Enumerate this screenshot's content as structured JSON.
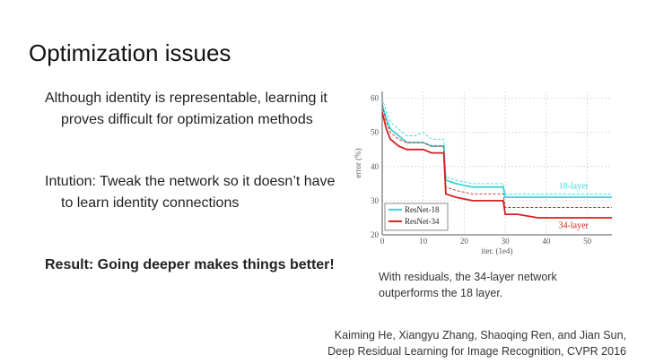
{
  "slide": {
    "title": "Optimization issues",
    "bullets": [
      "Although identity is representable, learning it proves difficult for optimization methods",
      "Intution: Tweak the network so it doesn’t have to learn identity connections",
      "Result: Going deeper makes things better!"
    ],
    "caption": "With residuals, the 34-layer network outperforms the 18 layer.",
    "citation_line1": "Kaiming He, Xiangyu Zhang, Shaoqing Ren, and Jian Sun,",
    "citation_line2": "Deep Residual Learning for Image Recognition, CVPR 2016"
  },
  "colors": {
    "resnet18": "#3ad6d8",
    "resnet34": "#d62020",
    "axis": "#555555"
  },
  "chart_data": {
    "type": "line",
    "xlabel": "iter. (1e4)",
    "ylabel": "error (%)",
    "xlim": [
      0,
      56
    ],
    "ylim": [
      20,
      62
    ],
    "xticks": [
      0,
      10,
      20,
      30,
      40,
      50
    ],
    "yticks": [
      20,
      30,
      40,
      50,
      60
    ],
    "grid": true,
    "legend": "lower-left",
    "annotations": [
      "18-layer",
      "34-layer"
    ],
    "series": [
      {
        "name": "ResNet-18",
        "style": "train",
        "x": [
          0,
          1,
          2,
          4,
          6,
          8,
          10,
          12,
          14,
          15,
          15.5,
          18,
          22,
          26,
          29.5,
          30,
          33,
          38,
          44,
          50,
          56
        ],
        "y": [
          58,
          54,
          51,
          49,
          47,
          47,
          47,
          46,
          46,
          46,
          36,
          35,
          34,
          34,
          34,
          31,
          31,
          31,
          31,
          31,
          31
        ]
      },
      {
        "name": "ResNet-18",
        "style": "val",
        "x": [
          0,
          1,
          2,
          4,
          6,
          8,
          10,
          12,
          14,
          15,
          15.5,
          18,
          22,
          26,
          29.5,
          30,
          33,
          38,
          44,
          50,
          56
        ],
        "y": [
          60,
          56,
          53,
          51,
          49,
          49,
          50,
          48,
          48,
          48,
          37,
          36,
          35,
          35,
          35,
          32,
          32,
          32,
          32,
          32,
          32
        ]
      },
      {
        "name": "ResNet-34",
        "style": "train",
        "x": [
          0,
          1,
          2,
          4,
          6,
          8,
          10,
          12,
          14,
          15,
          15.5,
          18,
          22,
          26,
          29.5,
          30,
          33,
          38,
          44,
          50,
          56
        ],
        "y": [
          56,
          51,
          48,
          46,
          45,
          45,
          45,
          44,
          44,
          44,
          32,
          31,
          30,
          30,
          30,
          26,
          26,
          25,
          25,
          25,
          25
        ]
      },
      {
        "name": "ResNet-34",
        "style": "val",
        "x": [
          0,
          1,
          2,
          4,
          6,
          8,
          10,
          12,
          14,
          15,
          15.5,
          18,
          22,
          26,
          29.5,
          30,
          33,
          38,
          44,
          50,
          56
        ],
        "y": [
          58,
          53,
          50,
          48,
          47,
          47,
          47,
          46,
          46,
          46,
          34,
          33,
          32,
          32,
          32,
          28,
          28,
          28,
          28,
          28,
          28
        ]
      }
    ],
    "legend_entries": [
      "ResNet-18",
      "ResNet-34"
    ]
  }
}
